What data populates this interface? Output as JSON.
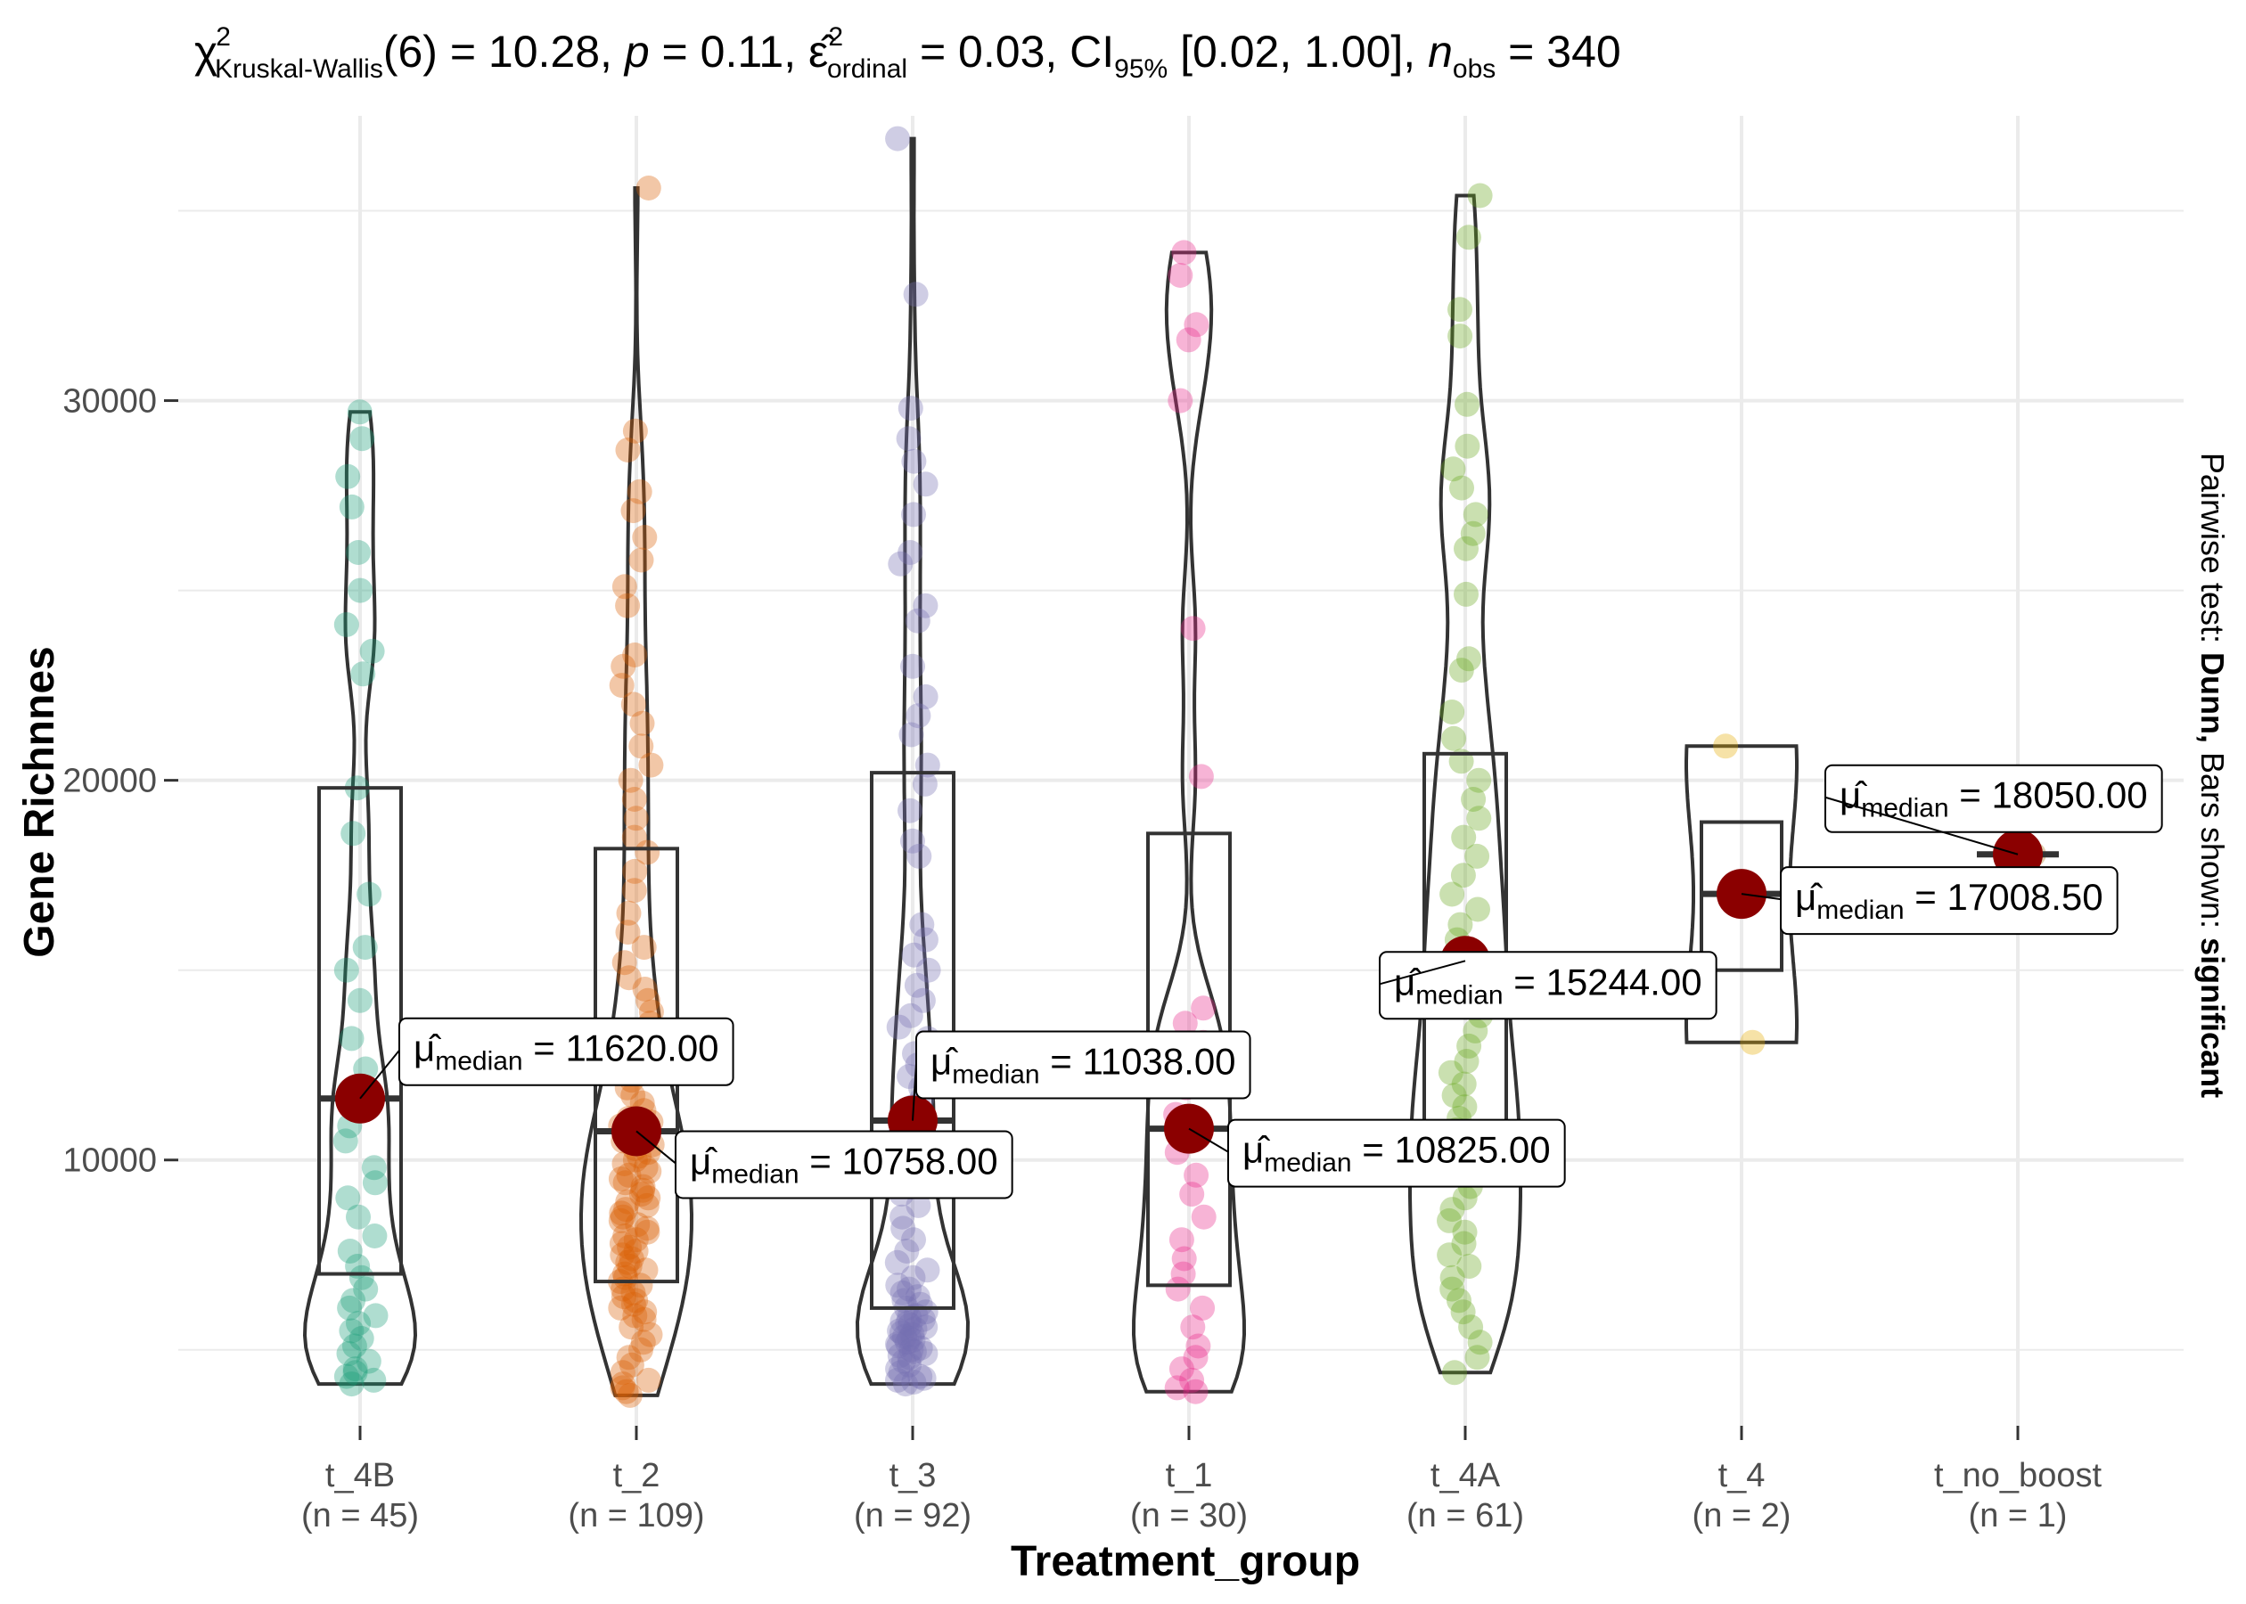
{
  "chart_data": {
    "type": "violin",
    "subtitle": {
      "stat_symbol": "χ",
      "stat_sup": "2",
      "stat_sub": "Kruskal-Wallis",
      "df": "(6) = 10.28, ",
      "p_symbol": "p",
      "p_text": " = 0.11, ",
      "eps_symbol": "ε̂",
      "eps_sup": "2",
      "eps_sub": "ordinal",
      "eps_text": " = 0.03, CI",
      "ci_sub": "95%",
      "ci_text": " [0.02, 1.00], ",
      "n_symbol": "n",
      "n_sub": "obs",
      "n_text": " = 340"
    },
    "xlabel": "Treatment_group",
    "ylabel": "Gene Richnnes",
    "side_caption": {
      "prefix": "Pairwise test: ",
      "test": "Dunn,",
      "middle": " Bars shown: ",
      "shown": "significant"
    },
    "ylim": [
      3000,
      37500
    ],
    "yticks": [
      10000,
      20000,
      30000
    ],
    "ytick_labels": [
      "10000",
      "20000",
      "30000"
    ],
    "grid": true,
    "label_prefix": "μ̂",
    "label_sub": "median",
    "groups": [
      {
        "name": "t_4B",
        "n_label": "(n = 45)",
        "color": "#1b9e77",
        "median": 11620,
        "median_label": " = 11620.00",
        "q1": 7000,
        "q3": 19800,
        "min": 4100,
        "max": 29700,
        "points": [
          29700,
          29000,
          28000,
          27200,
          26000,
          25000,
          24100,
          23400,
          22800,
          19800,
          18600,
          17000,
          15600,
          15000,
          14200,
          13200,
          12400,
          11800,
          11600,
          11300,
          10900,
          10500,
          9800,
          9400,
          9000,
          8500,
          8000,
          7600,
          7200,
          6900,
          6600,
          6300,
          6100,
          5900,
          5700,
          5500,
          5300,
          5100,
          4900,
          4700,
          4500,
          4400,
          4300,
          4200,
          4100
        ]
      },
      {
        "name": "t_2",
        "n_label": "(n = 109)",
        "color": "#d95f02",
        "median": 10758,
        "median_label": " = 10758.00",
        "q1": 6800,
        "q3": 18200,
        "min": 3800,
        "max": 35600,
        "points": [
          35600,
          29200,
          28700,
          27600,
          27100,
          26400,
          25800,
          25100,
          24600,
          23300,
          23000,
          22500,
          22000,
          21500,
          20900,
          20400,
          20000,
          19500,
          19000,
          18500,
          18100,
          17600,
          17100,
          16500,
          16000,
          15600,
          15200,
          14800,
          14500,
          14200,
          13900,
          13600,
          13300,
          13100,
          12900,
          12700,
          12500,
          12300,
          12100,
          11900,
          11700,
          11500,
          11300,
          11100,
          11000,
          10900,
          10800,
          10700,
          10600,
          10500,
          10400,
          10300,
          10200,
          10100,
          10000,
          9900,
          9800,
          9700,
          9600,
          9500,
          9400,
          9300,
          9200,
          9100,
          9000,
          8900,
          8800,
          8700,
          8600,
          8500,
          8400,
          8300,
          8200,
          8100,
          8000,
          7900,
          7800,
          7700,
          7600,
          7500,
          7400,
          7300,
          7200,
          7100,
          7000,
          6900,
          6800,
          6700,
          6600,
          6500,
          6400,
          6300,
          6200,
          6100,
          6000,
          5900,
          5800,
          5600,
          5400,
          5200,
          5000,
          4800,
          4600,
          4400,
          4200,
          4100,
          4000,
          3900,
          3800
        ]
      },
      {
        "name": "t_3",
        "n_label": "(n = 92)",
        "color": "#7570b3",
        "median": 11038,
        "median_label": " = 11038.00",
        "q1": 6100,
        "q3": 20200,
        "min": 4100,
        "max": 36900,
        "points": [
          36900,
          32800,
          29800,
          29000,
          28400,
          27800,
          27000,
          26000,
          25700,
          24600,
          24200,
          23000,
          22200,
          21700,
          21200,
          20400,
          19900,
          19200,
          18400,
          18000,
          16200,
          15800,
          15400,
          15000,
          14600,
          14200,
          13800,
          13500,
          13200,
          12800,
          12500,
          12200,
          11900,
          11600,
          11400,
          11200,
          11000,
          10800,
          10600,
          10300,
          10000,
          9700,
          9400,
          9100,
          8800,
          8500,
          8200,
          7900,
          7600,
          7300,
          7100,
          6900,
          6700,
          6600,
          6500,
          6400,
          6300,
          6200,
          6100,
          6000,
          5900,
          5850,
          5800,
          5750,
          5700,
          5650,
          5600,
          5550,
          5500,
          5450,
          5400,
          5350,
          5300,
          5250,
          5200,
          5150,
          5100,
          5050,
          5000,
          4950,
          4900,
          4850,
          4800,
          4700,
          4600,
          4500,
          4400,
          4300,
          4250,
          4200,
          4150,
          4100
        ]
      },
      {
        "name": "t_1",
        "n_label": "(n = 30)",
        "color": "#e7298a",
        "median": 10825,
        "median_label": " = 10825.00",
        "q1": 6700,
        "q3": 18600,
        "min": 3900,
        "max": 33900,
        "points": [
          33900,
          33300,
          32000,
          31600,
          30000,
          24000,
          20100,
          14000,
          13600,
          13100,
          12500,
          11900,
          11200,
          10700,
          10200,
          9600,
          9100,
          8500,
          7900,
          7400,
          7000,
          6600,
          6100,
          5600,
          5100,
          4800,
          4500,
          4200,
          4000,
          3900
        ]
      },
      {
        "name": "t_4A",
        "n_label": "(n = 61)",
        "color": "#66a61e",
        "median": 15244,
        "median_label": " = 15244.00",
        "q1": 10000,
        "q3": 20700,
        "min": 4400,
        "max": 35400,
        "points": [
          35400,
          34300,
          32400,
          31700,
          29900,
          28800,
          28200,
          27700,
          27000,
          26500,
          26100,
          24900,
          23200,
          22900,
          21800,
          21100,
          20500,
          20000,
          19500,
          19000,
          18500,
          18000,
          17500,
          17000,
          16600,
          16200,
          15800,
          15400,
          15000,
          14600,
          14200,
          13800,
          13400,
          13000,
          12600,
          12300,
          12000,
          11700,
          11400,
          11100,
          10800,
          10500,
          10200,
          9900,
          9600,
          9300,
          9000,
          8700,
          8400,
          8100,
          7800,
          7500,
          7200,
          6900,
          6600,
          6300,
          6000,
          5600,
          5200,
          4800,
          4400
        ]
      },
      {
        "name": "t_4",
        "n_label": "(n = 2)",
        "color": "#e6ab02",
        "median": 17008.5,
        "median_label": " = 17008.50",
        "q1": 15000,
        "q3": 18900,
        "min": 13100,
        "max": 20900,
        "points": [
          20900,
          13100
        ]
      },
      {
        "name": "t_no_boost",
        "n_label": "(n = 1)",
        "color": "#a6761d",
        "median": 18050,
        "median_label": " = 18050.00",
        "q1": 18050,
        "q3": 18050,
        "min": 18050,
        "max": 18050,
        "points": [
          18050
        ]
      }
    ]
  }
}
